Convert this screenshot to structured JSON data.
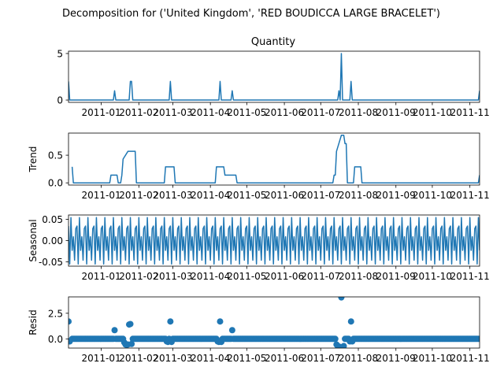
{
  "figure": {
    "suptitle": "Decomposition for ('United Kingdom', 'RED BOUDICCA LARGE BRACELET')"
  },
  "colors": {
    "series": "#1f77b4",
    "axes": "#000000"
  },
  "chart_data": [
    {
      "type": "line",
      "title": "Quantity",
      "ylabel": "",
      "x_range": [
        "2010-12-05",
        "2011-11-09"
      ],
      "x_ticks": [
        "2011-01",
        "2011-02",
        "2011-03",
        "2011-04",
        "2011-05",
        "2011-06",
        "2011-07",
        "2011-08",
        "2011-09",
        "2011-10",
        "2011-11"
      ],
      "y_ticks": [
        0,
        5
      ],
      "ylim": [
        -0.25,
        5.25
      ],
      "grid": false,
      "x": [
        "2010-12-05",
        "2010-12-06",
        "2011-01-11",
        "2011-01-12",
        "2011-01-13",
        "2011-01-24",
        "2011-01-25",
        "2011-01-26",
        "2011-01-27",
        "2011-02-26",
        "2011-02-27",
        "2011-02-28",
        "2011-04-08",
        "2011-04-09",
        "2011-04-10",
        "2011-04-18",
        "2011-04-19",
        "2011-04-20",
        "2011-07-15",
        "2011-07-16",
        "2011-07-17",
        "2011-07-18",
        "2011-07-19",
        "2011-07-25",
        "2011-07-26",
        "2011-07-27",
        "2011-11-08",
        "2011-11-09"
      ],
      "values": [
        2,
        0,
        0,
        1,
        0,
        0,
        2,
        2,
        0,
        0,
        2,
        0,
        0,
        2,
        0,
        0,
        1,
        0,
        0,
        1,
        0,
        5,
        0,
        0,
        2,
        0,
        0,
        1
      ]
    },
    {
      "type": "line",
      "title": "",
      "ylabel": "Trend",
      "x_range": [
        "2010-12-05",
        "2011-11-09"
      ],
      "x_ticks": [
        "2011-01",
        "2011-02",
        "2011-03",
        "2011-04",
        "2011-05",
        "2011-06",
        "2011-07",
        "2011-08",
        "2011-09",
        "2011-10",
        "2011-11"
      ],
      "y_ticks": [
        0.0,
        0.5
      ],
      "ylim": [
        -0.04,
        0.9
      ],
      "grid": false,
      "x": [
        "2010-12-08",
        "2010-12-09",
        "2011-01-08",
        "2011-01-09",
        "2011-01-14",
        "2011-01-15",
        "2011-01-17",
        "2011-01-18",
        "2011-01-19",
        "2011-01-23",
        "2011-01-24",
        "2011-01-29",
        "2011-01-30",
        "2011-02-22",
        "2011-02-23",
        "2011-03-02",
        "2011-03-03",
        "2011-04-05",
        "2011-04-06",
        "2011-04-12",
        "2011-04-13",
        "2011-04-22",
        "2011-04-23",
        "2011-07-11",
        "2011-07-12",
        "2011-07-13",
        "2011-07-14",
        "2011-07-18",
        "2011-07-19",
        "2011-07-20",
        "2011-07-21",
        "2011-07-22",
        "2011-07-23",
        "2011-07-28",
        "2011-07-29",
        "2011-08-03",
        "2011-08-04",
        "2011-11-08",
        "2011-11-09"
      ],
      "values": [
        0.29,
        0.0,
        0.0,
        0.14,
        0.14,
        0.0,
        0.0,
        0.14,
        0.43,
        0.57,
        0.57,
        0.57,
        0.0,
        0.0,
        0.29,
        0.29,
        0.0,
        0.0,
        0.29,
        0.29,
        0.14,
        0.14,
        0.0,
        0.0,
        0.14,
        0.14,
        0.57,
        0.86,
        0.86,
        0.86,
        0.71,
        0.71,
        0.0,
        0.0,
        0.29,
        0.29,
        0.0,
        0.0,
        0.14
      ]
    },
    {
      "type": "line",
      "title": "",
      "ylabel": "Seasonal",
      "x_range": [
        "2010-12-05",
        "2011-11-09"
      ],
      "x_ticks": [
        "2011-01",
        "2011-02",
        "2011-03",
        "2011-04",
        "2011-05",
        "2011-06",
        "2011-07",
        "2011-08",
        "2011-09",
        "2011-10",
        "2011-11"
      ],
      "y_ticks": [
        0.05,
        0.0,
        -0.05
      ],
      "ylim": [
        -0.06,
        0.06
      ],
      "grid": false,
      "x_start": "2010-12-05",
      "period_days": 7,
      "weekly_pattern": [
        0.034,
        -0.055,
        0.054,
        -0.023,
        0.009,
        -0.046,
        0.028
      ]
    },
    {
      "type": "scatter",
      "title": "",
      "ylabel": "Resid",
      "x_range": [
        "2010-12-05",
        "2011-11-09"
      ],
      "x_ticks": [
        "2011-01",
        "2011-02",
        "2011-03",
        "2011-04",
        "2011-05",
        "2011-06",
        "2011-07",
        "2011-08",
        "2011-09",
        "2011-10",
        "2011-11"
      ],
      "y_ticks": [
        0.0,
        2.5
      ],
      "ylim": [
        -0.9,
        4.1
      ],
      "grid": false,
      "baseline_x_start": "2010-12-08",
      "baseline_x_end": "2011-11-08",
      "baseline_value": 0.0,
      "outliers": [
        {
          "x": "2010-12-05",
          "y": 1.7
        },
        {
          "x": "2010-12-06",
          "y": -0.25
        },
        {
          "x": "2011-01-12",
          "y": 0.85
        },
        {
          "x": "2011-01-20",
          "y": -0.35
        },
        {
          "x": "2011-01-21",
          "y": -0.55
        },
        {
          "x": "2011-01-22",
          "y": -0.6
        },
        {
          "x": "2011-01-23",
          "y": -0.55
        },
        {
          "x": "2011-01-24",
          "y": 1.4
        },
        {
          "x": "2011-01-25",
          "y": 1.45
        },
        {
          "x": "2011-01-26",
          "y": -0.5
        },
        {
          "x": "2011-02-24",
          "y": -0.25
        },
        {
          "x": "2011-02-25",
          "y": -0.3
        },
        {
          "x": "2011-02-27",
          "y": 1.7
        },
        {
          "x": "2011-02-28",
          "y": -0.3
        },
        {
          "x": "2011-04-07",
          "y": -0.25
        },
        {
          "x": "2011-04-08",
          "y": -0.3
        },
        {
          "x": "2011-04-09",
          "y": 1.7
        },
        {
          "x": "2011-04-10",
          "y": -0.3
        },
        {
          "x": "2011-04-19",
          "y": 0.85
        },
        {
          "x": "2011-07-14",
          "y": -0.55
        },
        {
          "x": "2011-07-15",
          "y": -0.7
        },
        {
          "x": "2011-07-16",
          "y": -0.75
        },
        {
          "x": "2011-07-17",
          "y": -0.8
        },
        {
          "x": "2011-07-18",
          "y": 4.05
        },
        {
          "x": "2011-07-19",
          "y": -0.8
        },
        {
          "x": "2011-07-20",
          "y": -0.7
        },
        {
          "x": "2011-07-25",
          "y": -0.25
        },
        {
          "x": "2011-07-26",
          "y": 1.7
        },
        {
          "x": "2011-07-27",
          "y": -0.25
        }
      ]
    }
  ]
}
